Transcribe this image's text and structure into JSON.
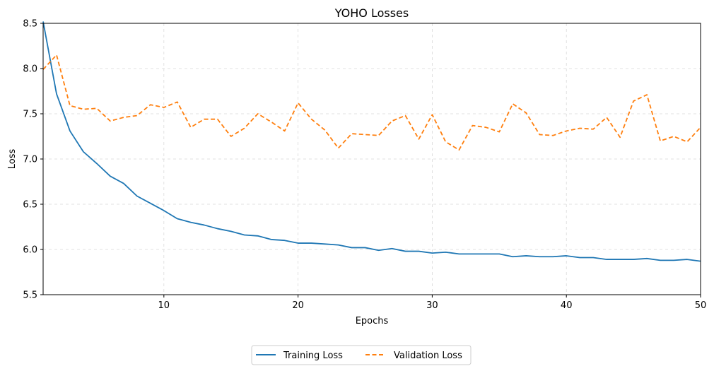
{
  "chart_data": {
    "type": "line",
    "title": "YOHO Losses",
    "xlabel": "Epochs",
    "ylabel": "Loss",
    "xlim": [
      1,
      50
    ],
    "ylim": [
      5.5,
      8.5
    ],
    "xticks": [
      10,
      20,
      30,
      40,
      50
    ],
    "yticks": [
      5.5,
      6.0,
      6.5,
      7.0,
      7.5,
      8.0,
      8.5
    ],
    "ytick_labels": [
      "5.5",
      "6.0",
      "6.5",
      "7.0",
      "7.5",
      "8.0",
      "8.5"
    ],
    "grid": true,
    "legend_placement": "bottom-center",
    "x": [
      1,
      2,
      3,
      4,
      5,
      6,
      7,
      8,
      9,
      10,
      11,
      12,
      13,
      14,
      15,
      16,
      17,
      18,
      19,
      20,
      21,
      22,
      23,
      24,
      25,
      26,
      27,
      28,
      29,
      30,
      31,
      32,
      33,
      34,
      35,
      36,
      37,
      38,
      39,
      40,
      41,
      42,
      43,
      44,
      45,
      46,
      47,
      48,
      49,
      50
    ],
    "series": [
      {
        "name": "Training Loss",
        "color": "#1f77b4",
        "style": "solid",
        "values": [
          8.52,
          7.72,
          7.31,
          7.08,
          6.95,
          6.81,
          6.73,
          6.59,
          6.51,
          6.43,
          6.34,
          6.3,
          6.27,
          6.23,
          6.2,
          6.16,
          6.15,
          6.11,
          6.1,
          6.07,
          6.07,
          6.06,
          6.05,
          6.02,
          6.02,
          5.99,
          6.01,
          5.98,
          5.98,
          5.96,
          5.97,
          5.95,
          5.95,
          5.95,
          5.95,
          5.92,
          5.93,
          5.92,
          5.92,
          5.93,
          5.91,
          5.91,
          5.89,
          5.89,
          5.89,
          5.9,
          5.88,
          5.88,
          5.89,
          5.87
        ]
      },
      {
        "name": "Validation Loss",
        "color": "#ff7f0e",
        "style": "dashed",
        "values": [
          7.99,
          8.15,
          7.59,
          7.55,
          7.56,
          7.42,
          7.46,
          7.48,
          7.6,
          7.57,
          7.63,
          7.35,
          7.44,
          7.44,
          7.25,
          7.34,
          7.5,
          7.41,
          7.31,
          7.62,
          7.44,
          7.32,
          7.12,
          7.28,
          7.27,
          7.26,
          7.42,
          7.48,
          7.22,
          7.49,
          7.19,
          7.1,
          7.37,
          7.35,
          7.3,
          7.61,
          7.51,
          7.27,
          7.26,
          7.31,
          7.34,
          7.33,
          7.46,
          7.24,
          7.64,
          7.71,
          7.2,
          7.25,
          7.19,
          7.35
        ]
      }
    ]
  }
}
